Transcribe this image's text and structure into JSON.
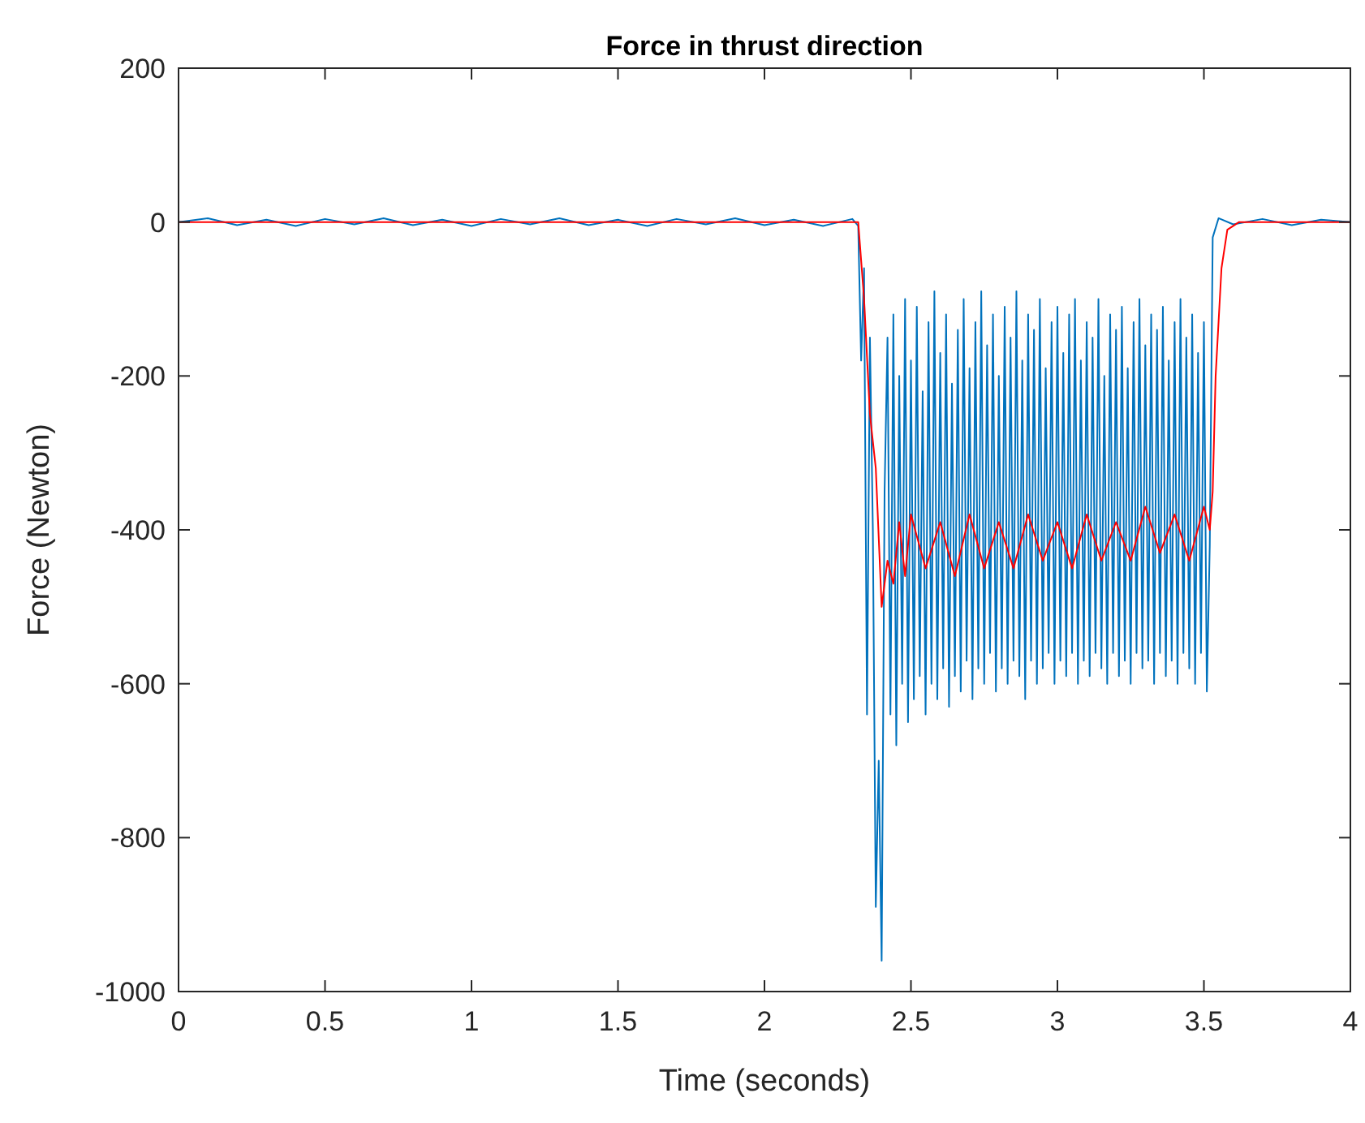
{
  "chart_data": {
    "type": "line",
    "title": "Force in thrust direction",
    "xlabel": "Time (seconds)",
    "ylabel": "Force (Newton)",
    "xlim": [
      0,
      4
    ],
    "ylim": [
      -1000,
      200
    ],
    "xticks": [
      0,
      0.5,
      1,
      1.5,
      2,
      2.5,
      3,
      3.5,
      4
    ],
    "yticks": [
      -1000,
      -800,
      -600,
      -400,
      -200,
      0,
      200
    ],
    "grid": false,
    "marker": "none",
    "line_style": "solid",
    "series": [
      {
        "color": "#0072bd",
        "x": [
          0,
          0.1,
          0.2,
          0.3,
          0.4,
          0.5,
          0.6,
          0.7,
          0.8,
          0.9,
          1.0,
          1.1,
          1.2,
          1.3,
          1.4,
          1.5,
          1.6,
          1.7,
          1.8,
          1.9,
          2.0,
          2.1,
          2.2,
          2.3,
          2.32,
          2.33,
          2.34,
          2.35,
          2.36,
          2.37,
          2.38,
          2.39,
          2.4,
          2.41,
          2.42,
          2.43,
          2.44,
          2.45,
          2.46,
          2.47,
          2.48,
          2.49,
          2.5,
          2.51,
          2.52,
          2.53,
          2.54,
          2.55,
          2.56,
          2.57,
          2.58,
          2.59,
          2.6,
          2.61,
          2.62,
          2.63,
          2.64,
          2.65,
          2.66,
          2.67,
          2.68,
          2.69,
          2.7,
          2.71,
          2.72,
          2.73,
          2.74,
          2.75,
          2.76,
          2.77,
          2.78,
          2.79,
          2.8,
          2.81,
          2.82,
          2.83,
          2.84,
          2.85,
          2.86,
          2.87,
          2.88,
          2.89,
          2.9,
          2.91,
          2.92,
          2.93,
          2.94,
          2.95,
          2.96,
          2.97,
          2.98,
          2.99,
          3.0,
          3.01,
          3.02,
          3.03,
          3.04,
          3.05,
          3.06,
          3.07,
          3.08,
          3.09,
          3.1,
          3.11,
          3.12,
          3.13,
          3.14,
          3.15,
          3.16,
          3.17,
          3.18,
          3.19,
          3.2,
          3.21,
          3.22,
          3.23,
          3.24,
          3.25,
          3.26,
          3.27,
          3.28,
          3.29,
          3.3,
          3.31,
          3.32,
          3.33,
          3.34,
          3.35,
          3.36,
          3.37,
          3.38,
          3.39,
          3.4,
          3.41,
          3.42,
          3.43,
          3.44,
          3.45,
          3.46,
          3.47,
          3.48,
          3.49,
          3.5,
          3.51,
          3.52,
          3.53,
          3.55,
          3.6,
          3.7,
          3.8,
          3.9,
          4.0
        ],
        "values": [
          0,
          5,
          -4,
          3,
          -5,
          4,
          -3,
          5,
          -4,
          3,
          -5,
          4,
          -3,
          5,
          -4,
          3,
          -5,
          4,
          -3,
          5,
          -4,
          3,
          -5,
          4,
          -5,
          -180,
          -60,
          -640,
          -150,
          -400,
          -890,
          -700,
          -960,
          -350,
          -150,
          -640,
          -120,
          -680,
          -200,
          -600,
          -100,
          -650,
          -180,
          -620,
          -110,
          -590,
          -220,
          -640,
          -130,
          -600,
          -90,
          -620,
          -170,
          -580,
          -120,
          -630,
          -210,
          -590,
          -140,
          -610,
          -100,
          -570,
          -190,
          -620,
          -130,
          -580,
          -90,
          -600,
          -160,
          -560,
          -120,
          -610,
          -200,
          -580,
          -110,
          -600,
          -150,
          -570,
          -90,
          -590,
          -180,
          -620,
          -120,
          -570,
          -140,
          -600,
          -100,
          -580,
          -190,
          -560,
          -130,
          -600,
          -110,
          -570,
          -170,
          -590,
          -120,
          -560,
          -100,
          -600,
          -180,
          -570,
          -130,
          -590,
          -150,
          -560,
          -100,
          -580,
          -200,
          -600,
          -120,
          -560,
          -140,
          -590,
          -110,
          -570,
          -190,
          -600,
          -130,
          -560,
          -100,
          -580,
          -160,
          -570,
          -120,
          -600,
          -140,
          -560,
          -110,
          -590,
          -180,
          -570,
          -130,
          -600,
          -100,
          -560,
          -150,
          -580,
          -120,
          -600,
          -170,
          -560,
          -130,
          -610,
          -420,
          -20,
          5,
          -3,
          4,
          -4,
          3,
          0
        ]
      },
      {
        "color": "#ff0000",
        "x": [
          0,
          0.5,
          1.0,
          1.5,
          2.0,
          2.32,
          2.34,
          2.36,
          2.38,
          2.4,
          2.42,
          2.44,
          2.46,
          2.48,
          2.5,
          2.55,
          2.6,
          2.65,
          2.7,
          2.75,
          2.8,
          2.85,
          2.9,
          2.95,
          3.0,
          3.05,
          3.1,
          3.15,
          3.2,
          3.25,
          3.3,
          3.35,
          3.4,
          3.45,
          3.5,
          3.52,
          3.53,
          3.54,
          3.56,
          3.58,
          3.62,
          4.0
        ],
        "values": [
          0,
          0,
          0,
          0,
          0,
          0,
          -100,
          -250,
          -320,
          -500,
          -440,
          -470,
          -390,
          -460,
          -380,
          -450,
          -390,
          -460,
          -380,
          -450,
          -390,
          -450,
          -380,
          -440,
          -390,
          -450,
          -380,
          -440,
          -390,
          -440,
          -370,
          -430,
          -380,
          -440,
          -370,
          -400,
          -350,
          -200,
          -60,
          -10,
          0,
          0
        ]
      }
    ]
  }
}
